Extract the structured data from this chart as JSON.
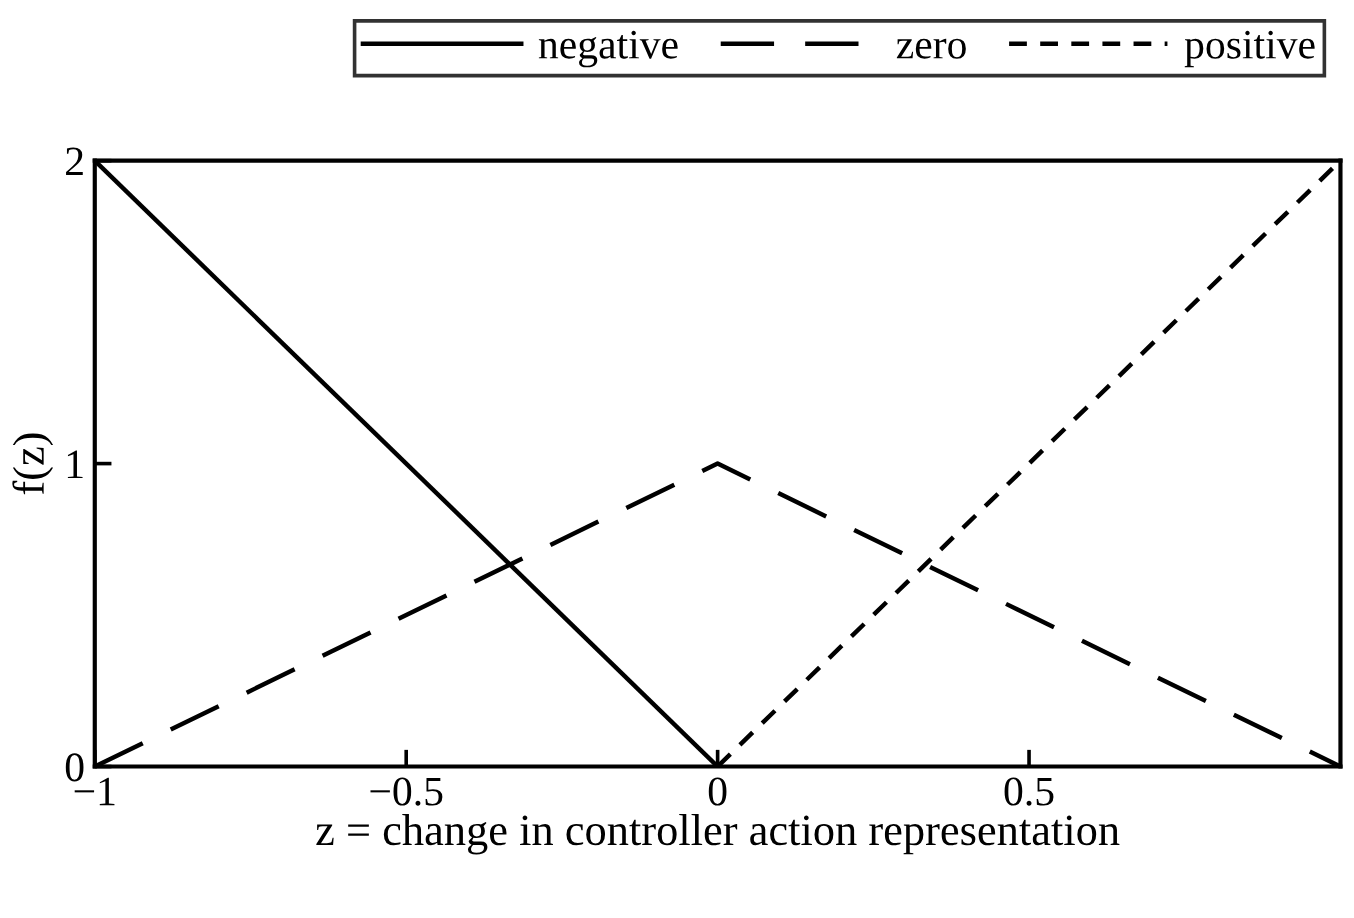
{
  "chart_data": {
    "type": "line",
    "xlabel": "z = change in controller action representation",
    "ylabel": "f(z)",
    "x": [
      -1,
      0,
      1
    ],
    "series": [
      {
        "name": "negative",
        "color": "#000000",
        "values": [
          2,
          0,
          null
        ],
        "line_style": "solid"
      },
      {
        "name": "zero",
        "color": "#000000",
        "values": [
          0,
          1,
          0
        ],
        "line_style": "dashed"
      },
      {
        "name": "positive",
        "color": "#000000",
        "values": [
          null,
          0,
          2
        ],
        "line_style": "dashed"
      }
    ],
    "xlim": [
      -1,
      1
    ],
    "ylim": [
      0,
      2
    ],
    "xticks": [
      {
        "value": -1,
        "label": "−1"
      },
      {
        "value": -0.5,
        "label": "−0.5"
      },
      0,
      0.5
    ],
    "yticks": [
      0,
      1,
      2
    ],
    "grid": false,
    "legend": "top",
    "marker": "none"
  }
}
